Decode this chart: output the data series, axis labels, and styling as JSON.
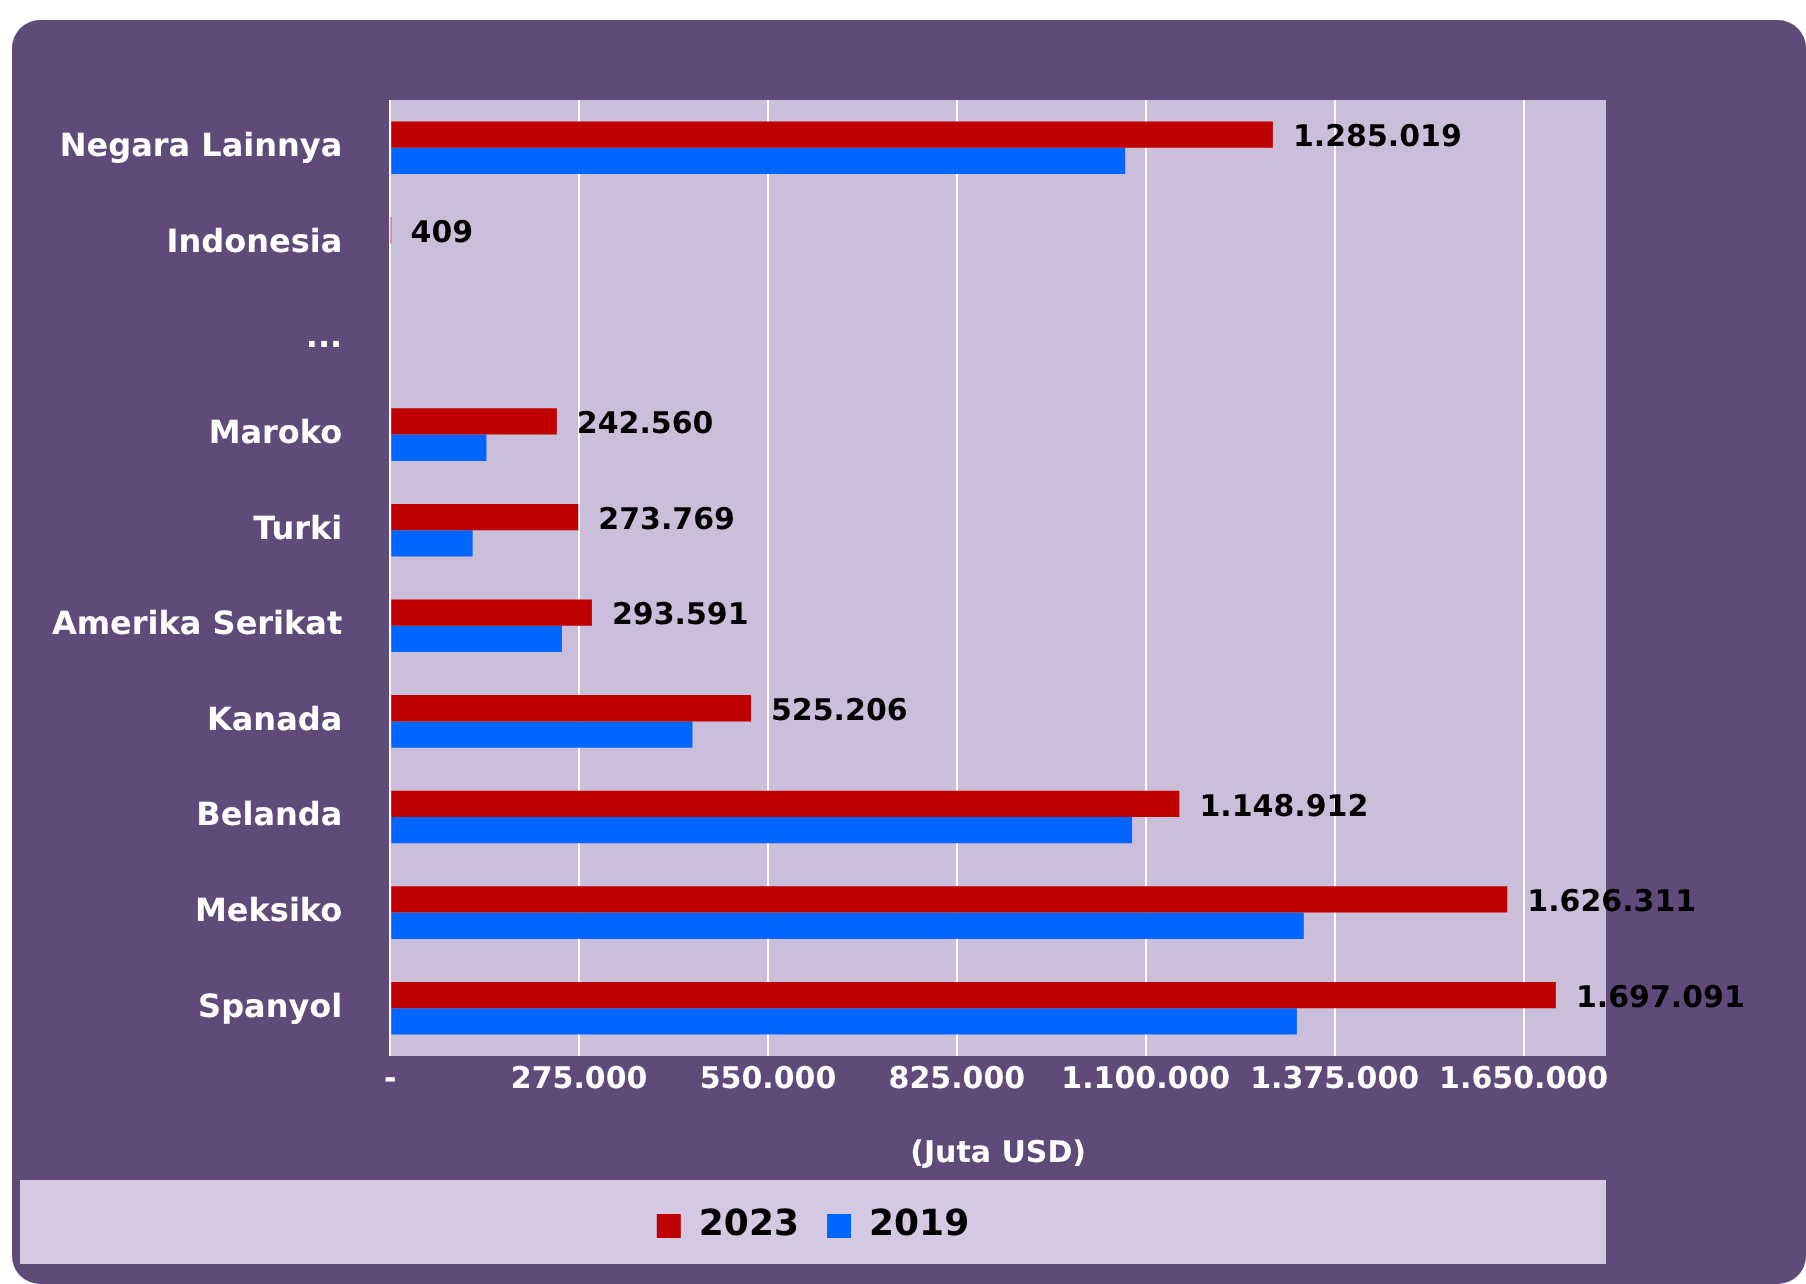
{
  "chart_data": {
    "type": "bar",
    "orientation": "horizontal",
    "xlabel": "(Juta USD)",
    "categories": [
      "Negara Lainnya",
      "Indonesia",
      "...",
      "Maroko",
      "Turki",
      "Amerika Serikat",
      "Kanada",
      "Belanda",
      "Meksiko",
      "Spanyol"
    ],
    "series": [
      {
        "name": "2023",
        "color": "#c00000",
        "values": [
          1285019,
          409,
          null,
          242560,
          273769,
          293591,
          525206,
          1148912,
          1626311,
          1697091
        ],
        "value_labels": [
          "1.285.019",
          "409",
          null,
          "242.560",
          "273.769",
          "293.591",
          "525.206",
          "1.148.912",
          "1.626.311",
          "1.697.091"
        ]
      },
      {
        "name": "2019",
        "color": "#0066ff",
        "values": [
          1070000,
          null,
          null,
          140000,
          120000,
          250000,
          440000,
          1080000,
          1330000,
          1320000
        ]
      }
    ],
    "xlim": [
      0,
      1770000
    ],
    "xticks": [
      {
        "value": 0,
        "label": "-"
      },
      {
        "value": 275000,
        "label": "275.000"
      },
      {
        "value": 550000,
        "label": "550.000"
      },
      {
        "value": 825000,
        "label": "825.000"
      },
      {
        "value": 1100000,
        "label": "1.100.000"
      },
      {
        "value": 1375000,
        "label": "1.375.000"
      },
      {
        "value": 1650000,
        "label": "1.650.000"
      }
    ],
    "grid": "x",
    "legend": "bottom"
  }
}
